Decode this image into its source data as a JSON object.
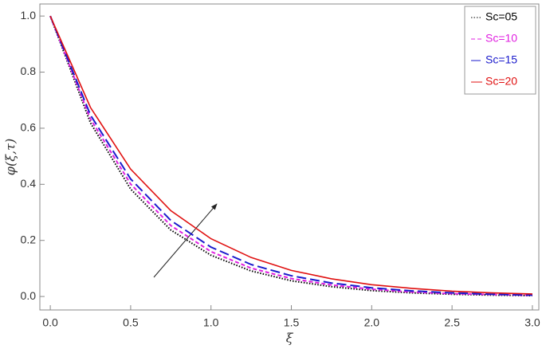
{
  "chart_data": {
    "type": "line",
    "x_label": "ξ",
    "y_label": "φ(ξ,τ)",
    "x": [
      0,
      0.25,
      0.5,
      0.75,
      1,
      1.25,
      1.5,
      1.75,
      2,
      2.25,
      2.5,
      2.75,
      3
    ],
    "series": [
      {
        "name": "Sc=05",
        "color": "#000000",
        "style": "dotted",
        "values": [
          1,
          0.619,
          0.383,
          0.237,
          0.147,
          0.091,
          0.056,
          0.035,
          0.021,
          0.013,
          0.008,
          0.005,
          0.003
        ]
      },
      {
        "name": "Sc=10",
        "color": "#e020e0",
        "style": "dashed",
        "values": [
          1,
          0.633,
          0.401,
          0.253,
          0.16,
          0.101,
          0.064,
          0.041,
          0.026,
          0.016,
          0.01,
          0.007,
          0.004
        ]
      },
      {
        "name": "Sc=15",
        "color": "#1a1acc",
        "style": "longdash",
        "values": [
          1,
          0.647,
          0.419,
          0.271,
          0.176,
          0.114,
          0.074,
          0.048,
          0.031,
          0.02,
          0.013,
          0.008,
          0.005
        ]
      },
      {
        "name": "Sc=20",
        "color": "#e01010",
        "style": "solid",
        "values": [
          1,
          0.674,
          0.454,
          0.306,
          0.206,
          0.139,
          0.093,
          0.063,
          0.042,
          0.029,
          0.019,
          0.013,
          0.009
        ]
      }
    ],
    "xlim": [
      -0.065,
      3.04
    ],
    "ylim": [
      -0.048,
      1.043
    ],
    "xticks": [
      {
        "value": 0,
        "label": "0.0"
      },
      0.5,
      {
        "value": 1,
        "label": "1.0"
      },
      1.5,
      {
        "value": 2,
        "label": "2.0"
      },
      2.5,
      {
        "value": 3,
        "label": "3.0"
      }
    ],
    "yticks": [
      {
        "value": 0,
        "label": "0.0"
      },
      0.2,
      0.4,
      0.6,
      0.8,
      {
        "value": 1,
        "label": "1.0"
      }
    ],
    "legend": "upper right"
  }
}
